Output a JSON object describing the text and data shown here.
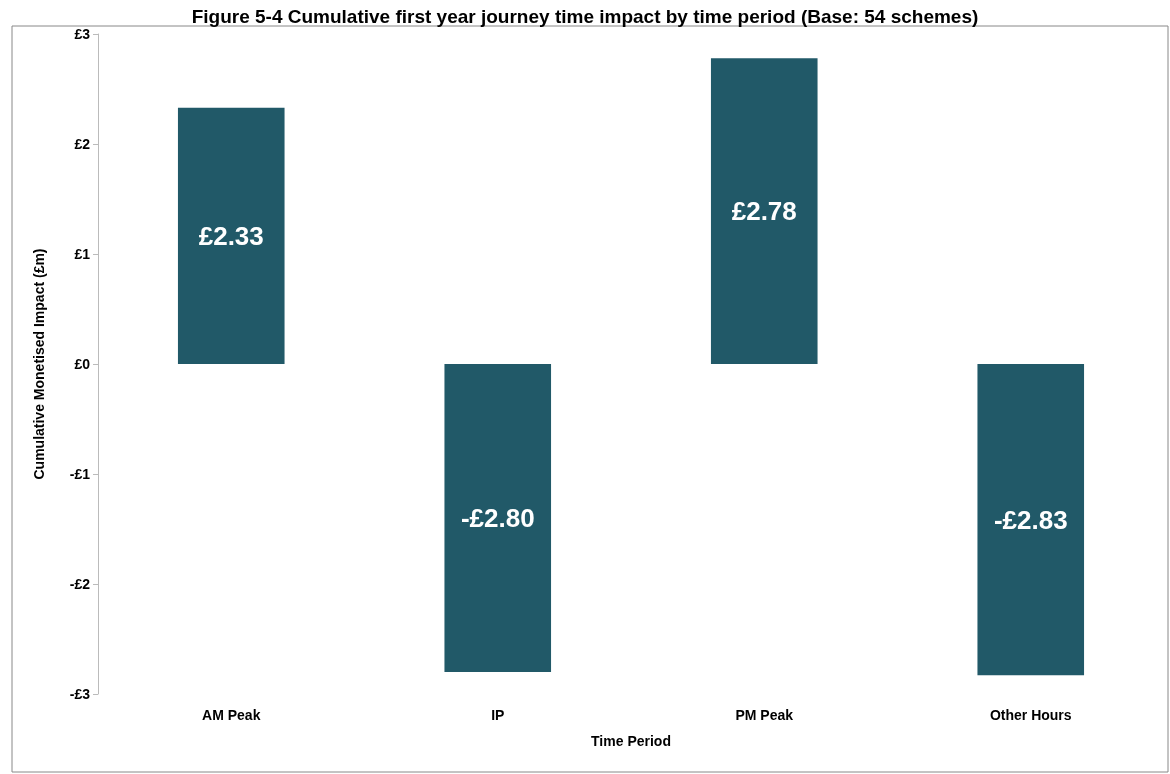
{
  "chart_data": {
    "type": "bar",
    "title": "Figure 5-4 Cumulative first year journey time impact by time period (Base: 54 schemes)",
    "xlabel": "Time Period",
    "ylabel": "Cumulative Monetised Impact (£m)",
    "categories": [
      "AM Peak",
      "IP",
      "PM Peak",
      "Other Hours"
    ],
    "values": [
      2.33,
      -2.8,
      2.78,
      -2.83
    ],
    "value_labels": [
      "£2.33",
      "-£2.80",
      "£2.78",
      "-£2.83"
    ],
    "color": "#215968",
    "ylim": [
      -3,
      3
    ],
    "yticks": [
      {
        "value": -3,
        "label": "-£3"
      },
      {
        "value": -2,
        "label": "-£2"
      },
      {
        "value": -1,
        "label": "-£1"
      },
      {
        "value": 0,
        "label": "£0"
      },
      {
        "value": 1,
        "label": "£1"
      },
      {
        "value": 2,
        "label": "£2"
      },
      {
        "value": 3,
        "label": "£3"
      }
    ],
    "grid": false
  }
}
